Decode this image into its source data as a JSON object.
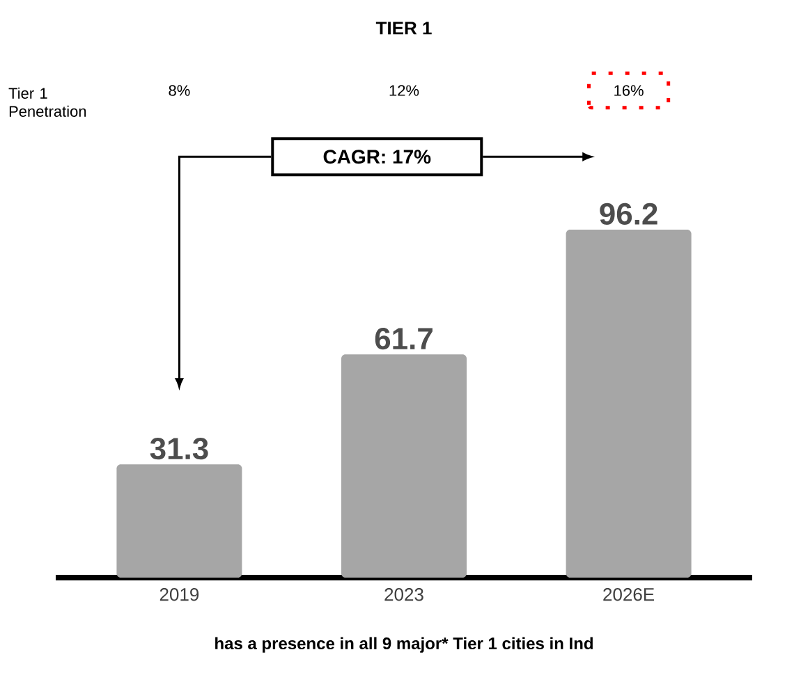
{
  "chart_data": {
    "type": "bar",
    "title": "TIER 1",
    "categories": [
      "2019",
      "2023",
      "2026E"
    ],
    "values": [
      31.3,
      61.7,
      96.2
    ],
    "color": "#a6a6a6",
    "data_labels": true,
    "annotations": [
      "Tier 1 Penetration",
      "8%",
      "12%",
      "16%",
      "CAGR: 17%",
      "has a presence in all 9 major* Tier 1 cities in Ind"
    ]
  }
}
